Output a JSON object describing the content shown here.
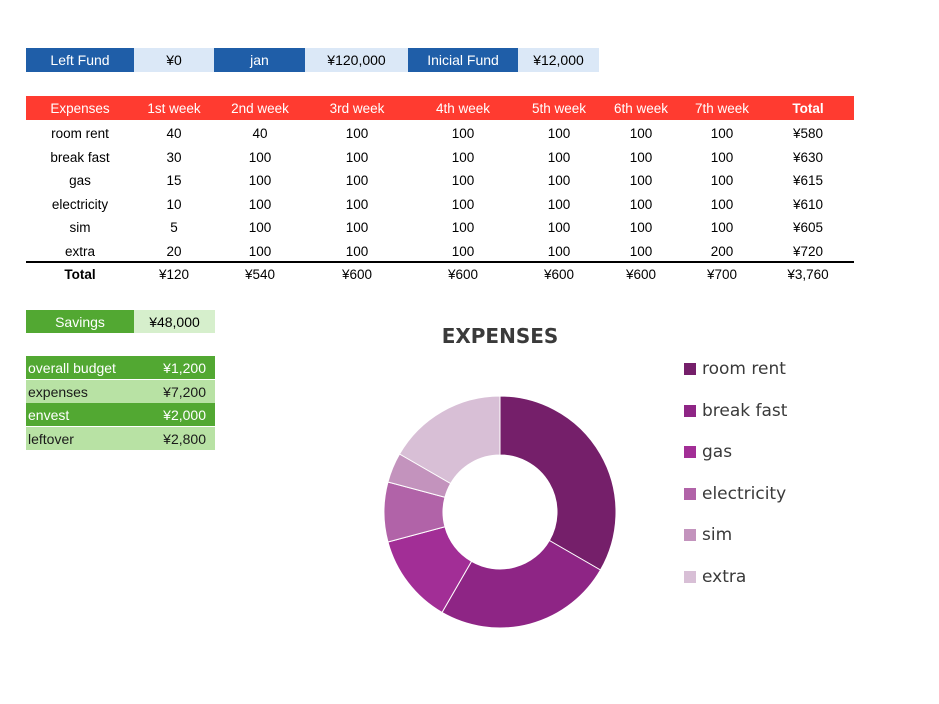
{
  "summary": {
    "left_fund_label": "Left Fund",
    "left_fund_value": "¥0",
    "month_label": "jan",
    "month_value": "¥120,000",
    "initial_fund_label": "Inicial Fund",
    "initial_fund_value": "¥12,000"
  },
  "expenses_table": {
    "headers": [
      "Expenses",
      "1st week",
      "2nd week",
      "3rd week",
      "4th week",
      "5th week",
      "6th week",
      "7th week",
      "Total"
    ],
    "rows": [
      [
        "room rent",
        "40",
        "40",
        "100",
        "100",
        "100",
        "100",
        "100",
        "¥580"
      ],
      [
        "break fast",
        "30",
        "100",
        "100",
        "100",
        "100",
        "100",
        "100",
        "¥630"
      ],
      [
        "gas",
        "15",
        "100",
        "100",
        "100",
        "100",
        "100",
        "100",
        "¥615"
      ],
      [
        "electricity",
        "10",
        "100",
        "100",
        "100",
        "100",
        "100",
        "100",
        "¥610"
      ],
      [
        "sim",
        "5",
        "100",
        "100",
        "100",
        "100",
        "100",
        "100",
        "¥605"
      ],
      [
        "extra",
        "20",
        "100",
        "100",
        "100",
        "100",
        "100",
        "200",
        "¥720"
      ]
    ],
    "total_row": [
      "Total",
      "¥120",
      "¥540",
      "¥600",
      "¥600",
      "¥600",
      "¥600",
      "¥700",
      "¥3,760"
    ]
  },
  "savings": {
    "label": "Savings",
    "value": "¥48,000"
  },
  "budget": [
    {
      "label": "overall budget",
      "value": "¥1,200"
    },
    {
      "label": "expenses",
      "value": "¥7,200"
    },
    {
      "label": "envest",
      "value": "¥2,000"
    },
    {
      "label": "leftover",
      "value": "¥2,800"
    }
  ],
  "chart_data": {
    "type": "pie",
    "subtype": "doughnut",
    "title": "EXPENSES",
    "categories": [
      "room rent",
      "break fast",
      "gas",
      "electricity",
      "sim",
      "extra"
    ],
    "values": [
      40,
      30,
      15,
      10,
      5,
      20
    ],
    "colors": [
      "#751f6a",
      "#8e2585",
      "#a22e96",
      "#b163a8",
      "#c393bd",
      "#d8bfd6"
    ],
    "legend_position": "right"
  }
}
